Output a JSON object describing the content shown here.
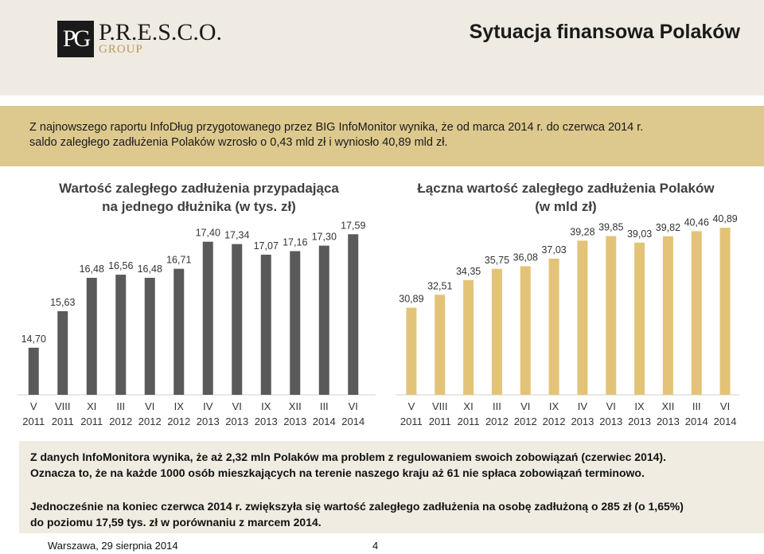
{
  "header": {
    "logo_name": "P.R.E.S.C.O.",
    "logo_sub": "GROUP",
    "logo_mark": "PG",
    "title": "Sytuacja finansowa Polaków"
  },
  "intro": {
    "line1": "Z najnowszego raportu InfoDług przygotowanego przez BIG InfoMonitor wynika, że od marca 2014 r. do czerwca 2014 r.",
    "line2": "saldo zaległego zadłużenia Polaków wzrosło o 0,43 mld zł i wyniosło 40,89 mld zł."
  },
  "info": {
    "p1_line1": "Z danych InfoMonitora wynika, że aż 2,32 mln Polaków ma problem z regulowaniem swoich zobowiązań (czerwiec 2014).",
    "p1_line2": "Oznacza to, że na każde 1000 osób mieszkających na terenie naszego kraju aż 61 nie spłaca zobowiązań terminowo.",
    "p2_line1": "Jednocześnie na koniec czerwca 2014 r. zwiększyła się wartość zaległego zadłużenia na osobę zadłużoną o 285 zł (o 1,65%)",
    "p2_line2": "do poziomu 17,59 tys. zł w porównaniu z marcem 2014."
  },
  "footer": {
    "date": "Warszawa, 29 sierpnia 2014",
    "page": "4"
  },
  "colors": {
    "left_bar": "#5a5a5a",
    "right_bar": "#e3c377",
    "intro_bg": "#ddc98e"
  },
  "chart_data": [
    {
      "type": "bar",
      "title_line1": "Wartość zaległego zadłużenia przypadająca",
      "title_line2": "na jednego dłużnika (w tys. zł)",
      "categories": [
        "V 2011",
        "VIII 2011",
        "XI 2011",
        "III 2012",
        "VI 2012",
        "IX 2012",
        "IV 2013",
        "VI 2013",
        "IX 2013",
        "XII 2013",
        "III 2014",
        "VI 2014"
      ],
      "month_labels": [
        "V",
        "VIII",
        "XI",
        "III",
        "VI",
        "IX",
        "IV",
        "VI",
        "IX",
        "XII",
        "III",
        "VI"
      ],
      "year_labels": [
        "2011",
        "2011",
        "2011",
        "2012",
        "2012",
        "2012",
        "2013",
        "2013",
        "2013",
        "2013",
        "2014",
        "2014"
      ],
      "values": [
        14.7,
        15.63,
        16.48,
        16.56,
        16.48,
        16.71,
        17.4,
        17.34,
        17.07,
        17.16,
        17.3,
        17.59
      ],
      "value_labels": [
        "14,70",
        "15,63",
        "16,48",
        "16,56",
        "16,48",
        "16,71",
        "17,40",
        "17,34",
        "17,07",
        "17,16",
        "17,30",
        "17,59"
      ],
      "ylim": [
        13.5,
        17.9
      ],
      "grid": false
    },
    {
      "type": "bar",
      "title_line1": "Łączna wartość zaległego zadłużenia Polaków",
      "title_line2": "(w mld zł)",
      "categories": [
        "V 2011",
        "VIII 2011",
        "XI 2011",
        "III 2012",
        "VI 2012",
        "IX 2012",
        "IV 2013",
        "VI 2013",
        "IX 2013",
        "XII 2013",
        "III 2014",
        "VI 2014"
      ],
      "month_labels": [
        "V",
        "VIII",
        "XI",
        "III",
        "VI",
        "IX",
        "IV",
        "VI",
        "IX",
        "XII",
        "III",
        "VI"
      ],
      "year_labels": [
        "2011",
        "2011",
        "2011",
        "2012",
        "2012",
        "2012",
        "2013",
        "2013",
        "2013",
        "2013",
        "2014",
        "2014"
      ],
      "values": [
        30.89,
        32.51,
        34.35,
        35.75,
        36.08,
        37.03,
        39.28,
        39.85,
        39.03,
        39.82,
        40.46,
        40.89
      ],
      "value_labels": [
        "30,89",
        "32,51",
        "34,35",
        "35,75",
        "36,08",
        "37,03",
        "39,28",
        "39,85",
        "39,03",
        "39,82",
        "40,46",
        "40,89"
      ],
      "ylim": [
        20,
        41.6
      ],
      "grid": false
    }
  ]
}
